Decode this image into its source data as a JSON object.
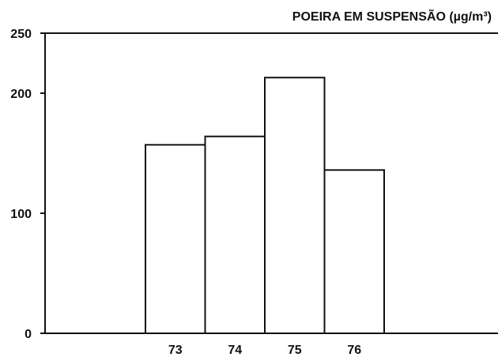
{
  "chart_data": {
    "type": "bar",
    "title": "POEIRA EM SUSPENSÃO (µg/m³)",
    "categories": [
      "73",
      "74",
      "75",
      "76"
    ],
    "values": [
      157,
      164,
      213,
      136
    ],
    "color": "#ffffff",
    "ylim": [
      0,
      250
    ],
    "yticks": [
      0,
      100,
      200,
      250
    ],
    "grid": false
  }
}
